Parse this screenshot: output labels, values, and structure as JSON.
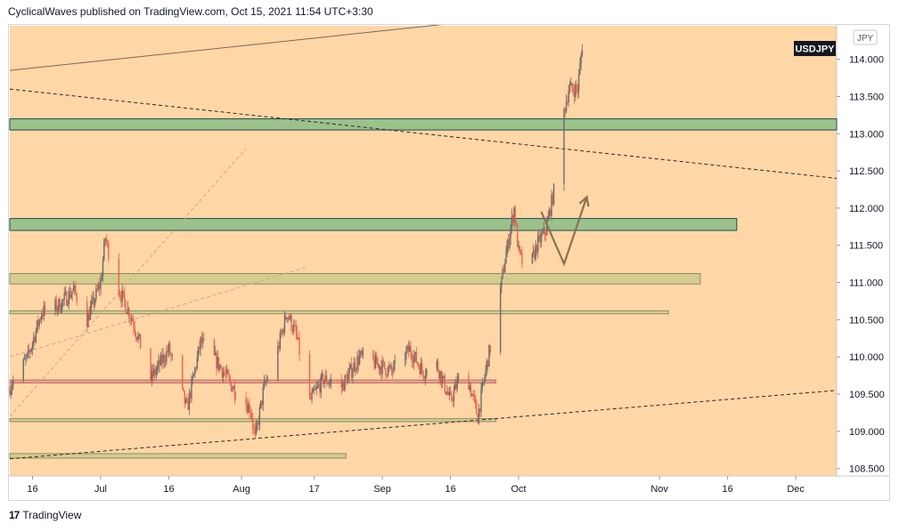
{
  "header": {
    "published_line": "CyclicalWaves published on TradingView.com, Oct 15, 2021 11:54 UTC+3:30"
  },
  "footer": {
    "logo_glyph": "17",
    "brand": "TradingView"
  },
  "chart_data": {
    "type": "candlestick",
    "symbol_badge": "USDJPY",
    "currency_label": "JPY",
    "ylim": [
      108.4,
      114.45
    ],
    "y_ticks": [
      "114.000",
      "113.500",
      "113.000",
      "112.500",
      "112.000",
      "111.500",
      "111.000",
      "110.500",
      "110.000",
      "109.500",
      "109.000",
      "108.500"
    ],
    "x_range": [
      "2021-06-11",
      "2021-12-10"
    ],
    "x_ticks": [
      {
        "date": "2021-06-16",
        "label": "16"
      },
      {
        "date": "2021-07-01",
        "label": "Jul"
      },
      {
        "date": "2021-07-16",
        "label": "16"
      },
      {
        "date": "2021-08-01",
        "label": "Aug"
      },
      {
        "date": "2021-08-17",
        "label": "17"
      },
      {
        "date": "2021-09-01",
        "label": "Sep"
      },
      {
        "date": "2021-09-16",
        "label": "16"
      },
      {
        "date": "2021-10-01",
        "label": "Oct"
      },
      {
        "date": "2021-11-01",
        "label": "Nov"
      },
      {
        "date": "2021-11-16",
        "label": "16"
      },
      {
        "date": "2021-12-01",
        "label": "Dec"
      }
    ],
    "price_path": [
      [
        "2021-06-11",
        109.6
      ],
      [
        "2021-06-15",
        110.0
      ],
      [
        "2021-06-18",
        110.6
      ],
      [
        "2021-06-22",
        110.7
      ],
      [
        "2021-06-25",
        110.9
      ],
      [
        "2021-06-28",
        110.5
      ],
      [
        "2021-07-01",
        111.0
      ],
      [
        "2021-07-02",
        111.6
      ],
      [
        "2021-07-05",
        110.9
      ],
      [
        "2021-07-08",
        110.5
      ],
      [
        "2021-07-12",
        109.7
      ],
      [
        "2021-07-16",
        110.1
      ],
      [
        "2021-07-20",
        109.3
      ],
      [
        "2021-07-23",
        110.2
      ],
      [
        "2021-07-27",
        109.9
      ],
      [
        "2021-07-30",
        109.6
      ],
      [
        "2021-08-03",
        109.3
      ],
      [
        "2021-08-04",
        108.9
      ],
      [
        "2021-08-06",
        109.6
      ],
      [
        "2021-08-09",
        110.1
      ],
      [
        "2021-08-11",
        110.6
      ],
      [
        "2021-08-13",
        110.3
      ],
      [
        "2021-08-16",
        109.4
      ],
      [
        "2021-08-19",
        109.7
      ],
      [
        "2021-08-23",
        109.6
      ],
      [
        "2021-08-27",
        110.0
      ],
      [
        "2021-08-31",
        109.9
      ],
      [
        "2021-09-03",
        109.8
      ],
      [
        "2021-09-07",
        110.1
      ],
      [
        "2021-09-10",
        109.8
      ],
      [
        "2021-09-13",
        109.9
      ],
      [
        "2021-09-16",
        109.4
      ],
      [
        "2021-09-19",
        109.9
      ],
      [
        "2021-09-22",
        109.2
      ],
      [
        "2021-09-24",
        109.9
      ],
      [
        "2021-09-26",
        110.5
      ],
      [
        "2021-09-28",
        111.3
      ],
      [
        "2021-09-30",
        112.0
      ],
      [
        "2021-10-01",
        111.4
      ],
      [
        "2021-10-03",
        111.1
      ],
      [
        "2021-10-05",
        111.5
      ],
      [
        "2021-10-07",
        111.7
      ],
      [
        "2021-10-09",
        112.3
      ],
      [
        "2021-10-10",
        113.1
      ],
      [
        "2021-10-11",
        113.3
      ],
      [
        "2021-10-12",
        113.6
      ],
      [
        "2021-10-13",
        113.6
      ],
      [
        "2021-10-14",
        113.6
      ],
      [
        "2021-10-15",
        114.2
      ]
    ],
    "zones": [
      {
        "kind": "green",
        "x0": "2021-06-11",
        "x1": "2021-12-10",
        "y0": 113.05,
        "y1": 113.2
      },
      {
        "kind": "green",
        "x0": "2021-06-11",
        "x1": "2021-11-18",
        "y0": 111.7,
        "y1": 111.86
      },
      {
        "kind": "olive",
        "x0": "2021-06-11",
        "x1": "2021-11-10",
        "y0": 110.98,
        "y1": 111.12
      },
      {
        "kind": "olive",
        "x0": "2021-06-11",
        "x1": "2021-11-03",
        "y0": 110.58,
        "y1": 110.62
      },
      {
        "kind": "red",
        "x0": "2021-06-11",
        "x1": "2021-09-26",
        "y0": 109.65,
        "y1": 109.69
      },
      {
        "kind": "olive",
        "x0": "2021-06-11",
        "x1": "2021-09-26",
        "y0": 109.13,
        "y1": 109.17
      },
      {
        "kind": "olive",
        "x0": "2021-06-11",
        "x1": "2021-08-24",
        "y0": 108.64,
        "y1": 108.7
      }
    ],
    "trendlines": [
      {
        "style": "solid",
        "points": [
          [
            "2021-06-11",
            113.85
          ],
          [
            "2021-10-20",
            114.7
          ]
        ]
      },
      {
        "style": "dashed",
        "points": [
          [
            "2021-06-11",
            113.6
          ],
          [
            "2021-12-10",
            112.4
          ]
        ]
      },
      {
        "style": "dashed",
        "points": [
          [
            "2021-06-11",
            108.63
          ],
          [
            "2021-12-10",
            109.55
          ]
        ]
      },
      {
        "style": "dashed-light",
        "points": [
          [
            "2021-06-11",
            109.2
          ],
          [
            "2021-08-02",
            112.8
          ]
        ]
      },
      {
        "style": "dashed-light",
        "points": [
          [
            "2021-06-11",
            110.0
          ],
          [
            "2021-08-15",
            111.2
          ]
        ]
      }
    ],
    "projection": [
      [
        "2021-10-06",
        111.95
      ],
      [
        "2021-10-11",
        111.25
      ],
      [
        "2021-10-16",
        112.15
      ]
    ]
  }
}
